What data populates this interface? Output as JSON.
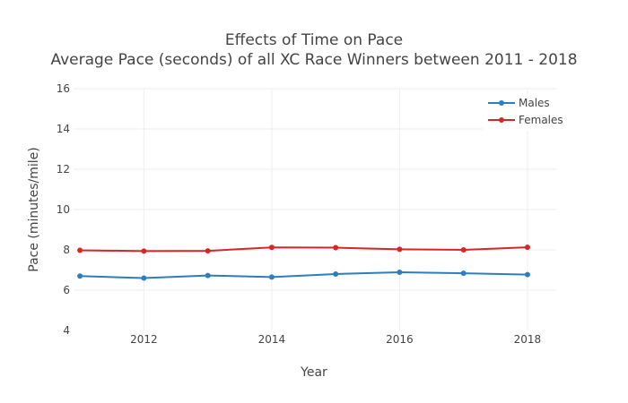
{
  "chart_data": {
    "type": "line",
    "title": "Effects of Time on Pace",
    "subtitle": "Average Pace (seconds) of all XC Race Winners between 2011 - 2018",
    "xlabel": "Year",
    "ylabel": "Pace (minutes/mile)",
    "x": [
      2011,
      2012,
      2013,
      2014,
      2015,
      2016,
      2017,
      2018
    ],
    "xlim": [
      2010.9,
      2018.45
    ],
    "ylim": [
      4,
      16
    ],
    "xticks": [
      2012,
      2014,
      2016,
      2018
    ],
    "yticks": [
      4,
      6,
      8,
      10,
      12,
      14,
      16
    ],
    "grid": true,
    "legend_position": "top-right",
    "series": [
      {
        "name": "Males",
        "color": "#2e7ebb",
        "values": [
          6.7,
          6.6,
          6.73,
          6.65,
          6.8,
          6.89,
          6.84,
          6.77
        ]
      },
      {
        "name": "Females",
        "color": "#d62728",
        "values": [
          7.98,
          7.94,
          7.95,
          8.12,
          8.11,
          8.03,
          8.0,
          8.13
        ]
      }
    ]
  }
}
